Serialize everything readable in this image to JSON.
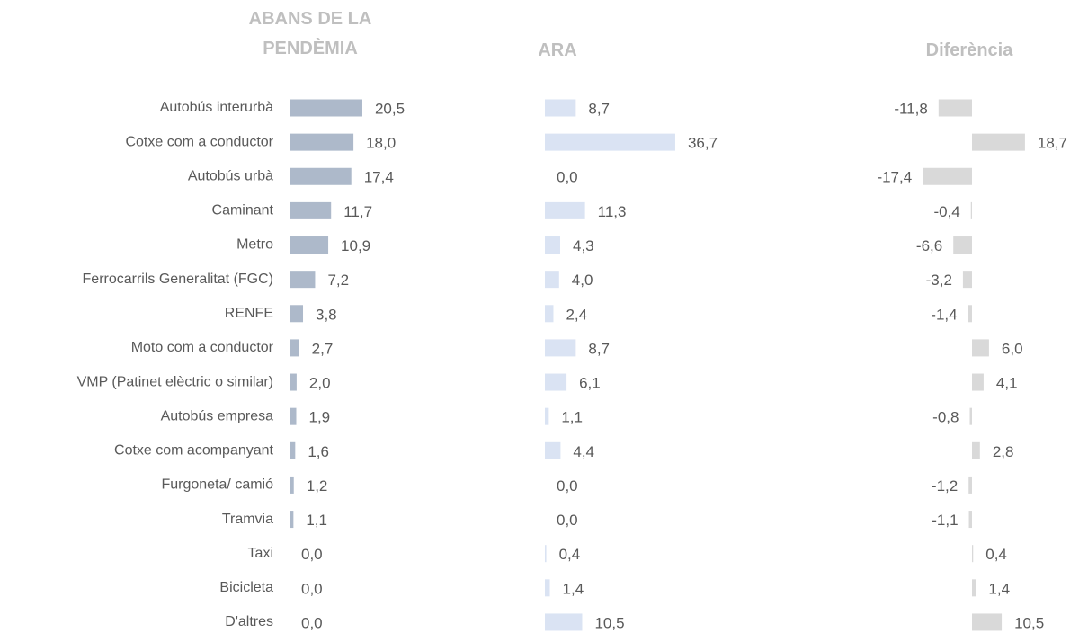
{
  "chart_data": {
    "type": "bar",
    "categories": [
      "Autobús interurbà",
      "Cotxe com a conductor",
      "Autobús urbà",
      "Caminant",
      "Metro",
      "Ferrocarrils Generalitat (FGC)",
      "RENFE",
      "Moto com a conductor",
      "VMP (Patinet elèctric o similar)",
      "Autobús empresa",
      "Cotxe com acompanyant",
      "Furgoneta/ camió",
      "Tramvia",
      "Taxi",
      "Bicicleta",
      "D'altres"
    ],
    "series": [
      {
        "name": "ABANS DE LA PENDÈMIA",
        "color": "#adb9ca",
        "values": [
          20.5,
          18.0,
          17.4,
          11.7,
          10.9,
          7.2,
          3.8,
          2.7,
          2.0,
          1.9,
          1.6,
          1.2,
          1.1,
          0.0,
          0.0,
          0.0
        ],
        "value_labels": [
          "20,5",
          "18,0",
          "17,4",
          "11,7",
          "10,9",
          "7,2",
          "3,8",
          "2,7",
          "2,0",
          "1,9",
          "1,6",
          "1,2",
          "1,1",
          "0,0",
          "0,0",
          "0,0"
        ]
      },
      {
        "name": "ARA",
        "color": "#dae3f3",
        "values": [
          8.7,
          36.7,
          0.0,
          11.3,
          4.3,
          4.0,
          2.4,
          8.7,
          6.1,
          1.1,
          4.4,
          0.0,
          0.0,
          0.4,
          1.4,
          10.5
        ],
        "value_labels": [
          "8,7",
          "36,7",
          "0,0",
          "11,3",
          "4,3",
          "4,0",
          "2,4",
          "8,7",
          "6,1",
          "1,1",
          "4,4",
          "0,0",
          "0,0",
          "0,4",
          "1,4",
          "10,5"
        ]
      },
      {
        "name": "Diferència",
        "color": "#d9d9d9",
        "values": [
          -11.8,
          18.7,
          -17.4,
          -0.4,
          -6.6,
          -3.2,
          -1.4,
          6.0,
          4.1,
          -0.8,
          2.8,
          -1.2,
          -1.1,
          0.4,
          1.4,
          10.5
        ],
        "value_labels": [
          "-11,8",
          "18,7",
          "-17,4",
          "-0,4",
          "-6,6",
          "-3,2",
          "-1,4",
          "6,0",
          "4,1",
          "-0,8",
          "2,8",
          "-1,2",
          "-1,1",
          "0,4",
          "1,4",
          "10,5"
        ]
      }
    ]
  }
}
